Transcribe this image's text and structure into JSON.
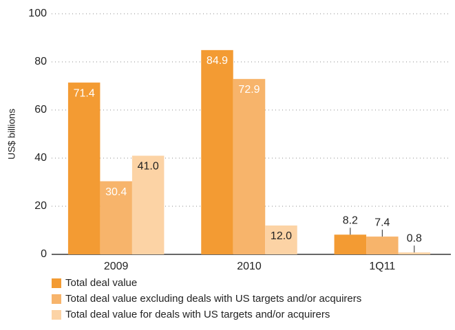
{
  "chart_data": {
    "type": "bar",
    "y_label": "US$ billions",
    "categories": [
      "2009",
      "2010",
      "1Q11"
    ],
    "series": [
      {
        "name": "Total deal value",
        "color": "#f39b33",
        "values": [
          71.4,
          84.9,
          8.2
        ],
        "value_labels": [
          "71.4",
          "84.9",
          "8.2"
        ]
      },
      {
        "name": "Total deal value excluding deals with US targets and/or acquirers",
        "color": "#f7b46b",
        "values": [
          30.4,
          72.9,
          7.4
        ],
        "value_labels": [
          "30.4",
          "72.9",
          "7.4"
        ]
      },
      {
        "name": "Total deal value for deals with US targets and/or acquirers",
        "color": "#fcd3a5",
        "values": [
          41.0,
          12.0,
          0.8
        ],
        "value_labels": [
          "41.0",
          "12.0",
          "0.8"
        ]
      }
    ],
    "ylim": [
      0,
      100
    ],
    "yticks": [
      0,
      20,
      40,
      60,
      80,
      100
    ],
    "grid": true,
    "legend": "bottom"
  }
}
